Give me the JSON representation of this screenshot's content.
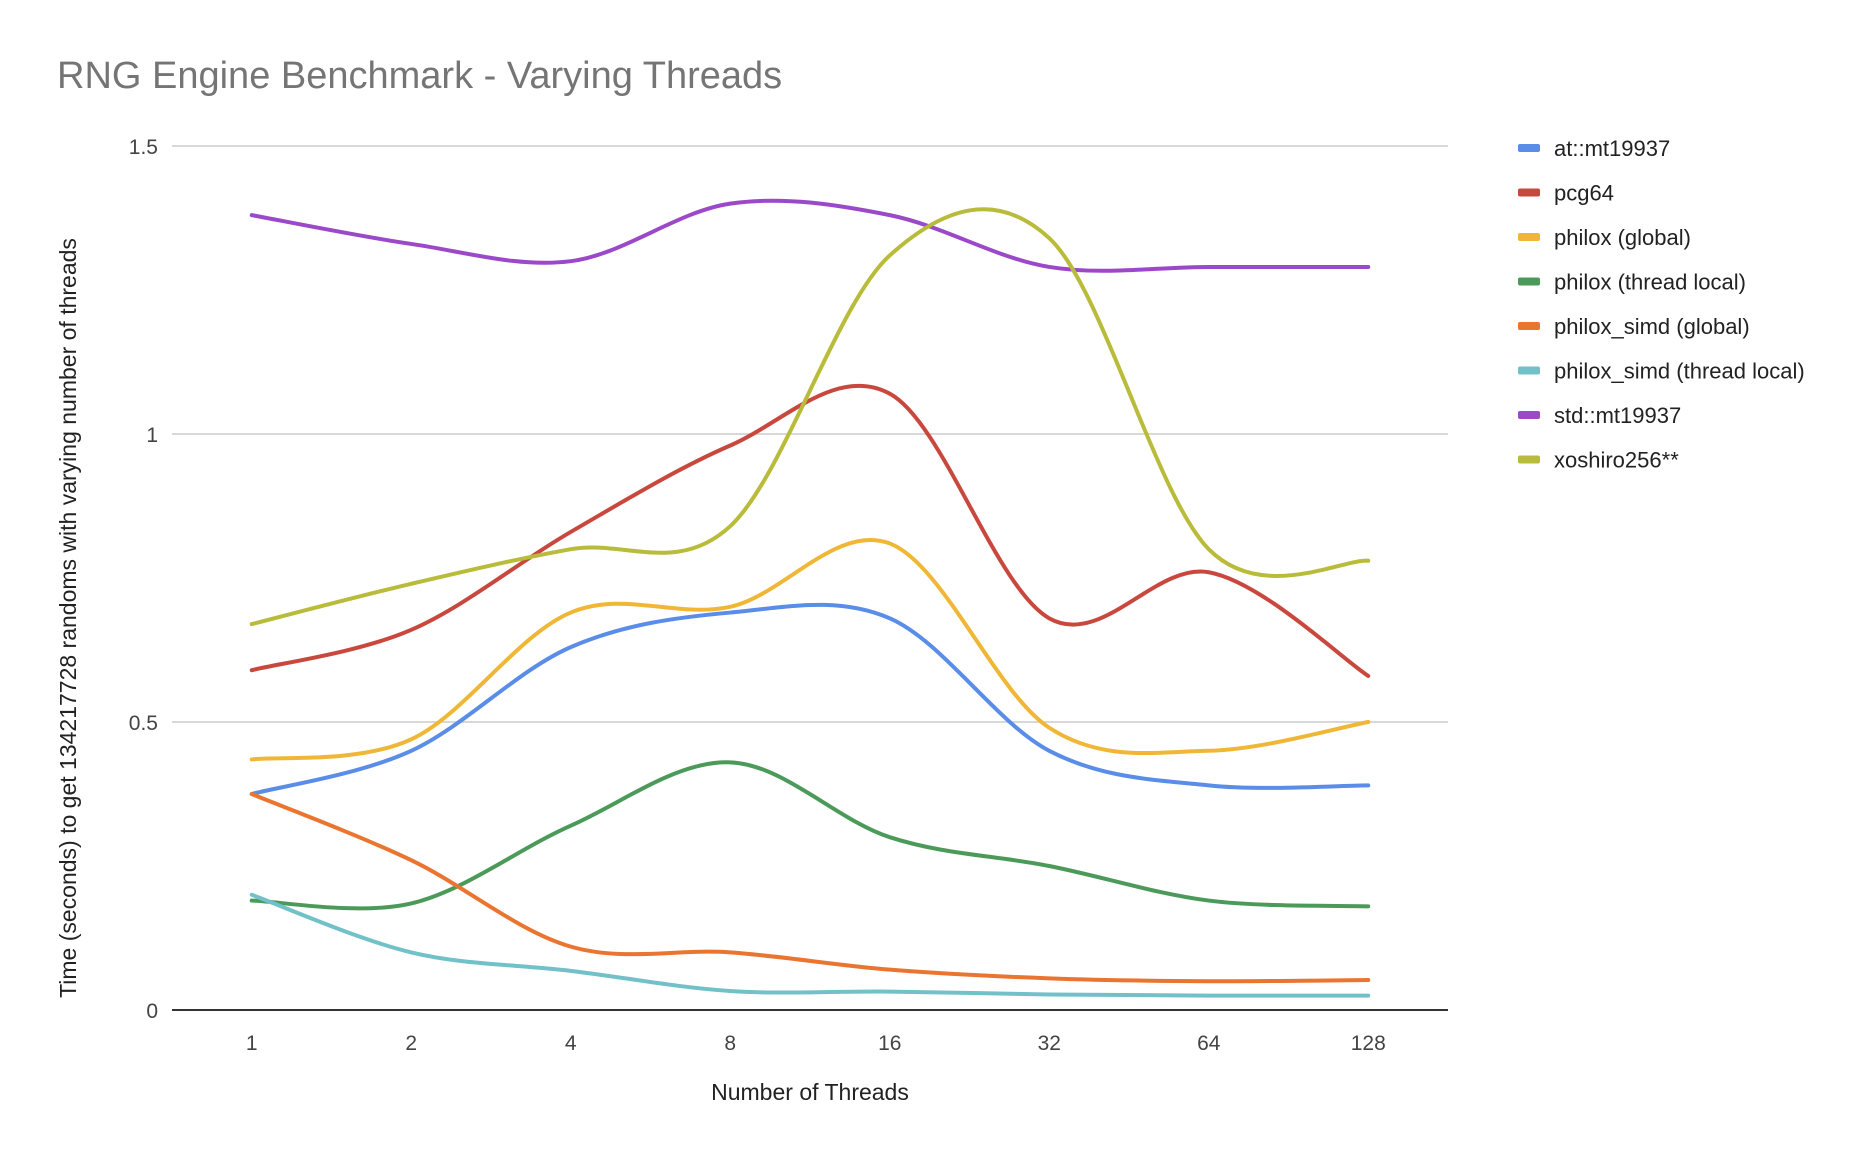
{
  "chart_data": {
    "type": "line",
    "title": "RNG Engine Benchmark - Varying Threads",
    "xlabel": "Number of Threads",
    "ylabel": "Time (seconds) to get 134217728 randoms with varying number of threads",
    "categories": [
      "1",
      "2",
      "4",
      "8",
      "16",
      "32",
      "64",
      "128"
    ],
    "ylim": [
      0,
      1.5
    ],
    "yticks": [
      {
        "value": 0,
        "label": "0"
      },
      {
        "value": 0.5,
        "label": "0.5"
      },
      {
        "value": 1,
        "label": "1"
      },
      {
        "value": 1.5,
        "label": "1.5"
      }
    ],
    "grid": true,
    "legend_position": "right",
    "series": [
      {
        "name": "at::mt19937",
        "color": "#5a8de8",
        "values": [
          0.375,
          0.45,
          0.63,
          0.69,
          0.68,
          0.45,
          0.39,
          0.39
        ]
      },
      {
        "name": "pcg64",
        "color": "#c9483e",
        "values": [
          0.59,
          0.66,
          0.83,
          0.98,
          1.07,
          0.68,
          0.76,
          0.58
        ]
      },
      {
        "name": "philox (global)",
        "color": "#efb735",
        "values": [
          0.435,
          0.47,
          0.69,
          0.7,
          0.81,
          0.49,
          0.45,
          0.5
        ]
      },
      {
        "name": "philox (thread local)",
        "color": "#4b9a5a",
        "values": [
          0.19,
          0.185,
          0.32,
          0.43,
          0.3,
          0.25,
          0.19,
          0.18
        ]
      },
      {
        "name": "philox_simd (global)",
        "color": "#ea7530",
        "values": [
          0.375,
          0.26,
          0.11,
          0.1,
          0.07,
          0.055,
          0.05,
          0.052
        ]
      },
      {
        "name": "philox_simd (thread local)",
        "color": "#72c0c8",
        "values": [
          0.2,
          0.1,
          0.068,
          0.033,
          0.032,
          0.027,
          0.025,
          0.025
        ]
      },
      {
        "name": "std::mt19937",
        "color": "#9b48c9",
        "values": [
          1.38,
          1.33,
          1.3,
          1.4,
          1.38,
          1.29,
          1.29,
          1.29
        ]
      },
      {
        "name": "xoshiro256**",
        "color": "#b9bc3a",
        "values": [
          0.67,
          0.74,
          0.8,
          0.84,
          1.31,
          1.34,
          0.8,
          0.78
        ]
      }
    ]
  }
}
